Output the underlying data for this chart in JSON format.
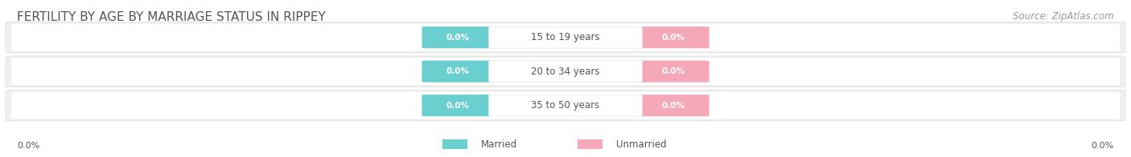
{
  "title": "FERTILITY BY AGE BY MARRIAGE STATUS IN RIPPEY",
  "source": "Source: ZipAtlas.com",
  "age_groups": [
    "15 to 19 years",
    "20 to 34 years",
    "35 to 50 years"
  ],
  "married_values": [
    0.0,
    0.0,
    0.0
  ],
  "unmarried_values": [
    0.0,
    0.0,
    0.0
  ],
  "married_color": "#6CCFCF",
  "unmarried_color": "#F4A8B8",
  "bar_bg_color": "#EFEFEF",
  "bar_border_color": "#DDDDDD",
  "title_color": "#555555",
  "source_color": "#999999",
  "label_color_dark": "#555555",
  "label_color_white": "#FFFFFF",
  "background_color": "#FFFFFF",
  "title_fontsize": 11,
  "source_fontsize": 8.5,
  "bar_label_fontsize": 7.5,
  "age_label_fontsize": 8.5,
  "axis_label_fontsize": 8,
  "legend_fontsize": 8.5,
  "axis_label_left": "0.0%",
  "axis_label_right": "0.0%",
  "legend_married": "Married",
  "legend_unmarried": "Unmarried"
}
